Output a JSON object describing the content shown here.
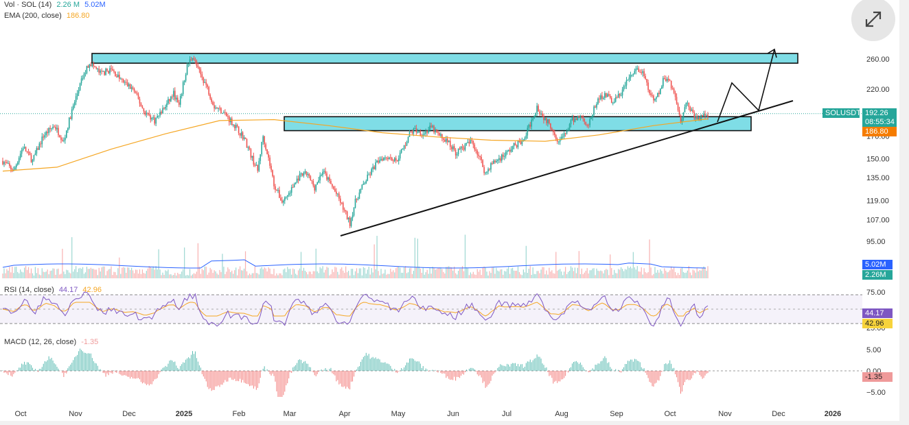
{
  "legends": {
    "vol": {
      "label": "Vol · SOL (14)",
      "v1": "2.26 M",
      "v2": "5.02M"
    },
    "ema": {
      "label": "EMA (200, close)",
      "value": "186.80"
    },
    "rsi": {
      "label": "RSI (14, close)",
      "v1": "44.17",
      "v2": "42.96"
    },
    "macd": {
      "label": "MACD (12, 26, close)",
      "value": "-1.35"
    }
  },
  "tags": {
    "symbol": "SOLUSDT",
    "price": "192.26",
    "countdown": "08:55:34",
    "ema": "186.80",
    "vol_ma": "5.02M",
    "vol": "2.26M",
    "rsi": "44.17",
    "rsi_ma": "42.96",
    "macd": "-1.35"
  },
  "colors": {
    "up": "#26a69a",
    "down": "#ef5350",
    "ema": "#f5a623",
    "zone_fill": "#7fdde6",
    "rsi_line": "#7e57c2",
    "vol_ma": "#2962ff",
    "tag_blue": "#2962ff",
    "tag_teal": "#26a69a",
    "tag_orange": "#f57c00",
    "tag_purple": "#7e57c2",
    "tag_yellow": "#f7d33c",
    "tag_pink": "#ef9a9a"
  },
  "chart_data": {
    "type": "candlestick",
    "symbol": "SOLUSDT",
    "x_ticks": [
      "Oct",
      "Nov",
      "Dec",
      "2025",
      "Feb",
      "Mar",
      "Apr",
      "May",
      "Jun",
      "Jul",
      "Aug",
      "Sep",
      "Oct",
      "Nov",
      "Dec",
      "2026"
    ],
    "price_ticks": [
      95,
      107,
      119,
      135,
      150,
      170,
      220,
      260
    ],
    "price_tick_labels": [
      "95.00",
      "107.00",
      "119.00",
      "135.00",
      "150.00",
      "170.00",
      "220.00",
      "260.00"
    ],
    "price_axis": "log",
    "price_close_series": [
      {
        "t": 0,
        "v": 148
      },
      {
        "t": 8,
        "v": 140
      },
      {
        "t": 15,
        "v": 160
      },
      {
        "t": 22,
        "v": 148
      },
      {
        "t": 30,
        "v": 170
      },
      {
        "t": 38,
        "v": 180
      },
      {
        "t": 45,
        "v": 165
      },
      {
        "t": 52,
        "v": 200
      },
      {
        "t": 58,
        "v": 230
      },
      {
        "t": 64,
        "v": 255
      },
      {
        "t": 72,
        "v": 240
      },
      {
        "t": 80,
        "v": 245
      },
      {
        "t": 88,
        "v": 230
      },
      {
        "t": 96,
        "v": 220
      },
      {
        "t": 104,
        "v": 195
      },
      {
        "t": 112,
        "v": 185
      },
      {
        "t": 120,
        "v": 200
      },
      {
        "t": 126,
        "v": 215
      },
      {
        "t": 130,
        "v": 200
      },
      {
        "t": 136,
        "v": 250
      },
      {
        "t": 140,
        "v": 265
      },
      {
        "t": 144,
        "v": 245
      },
      {
        "t": 150,
        "v": 225
      },
      {
        "t": 156,
        "v": 200
      },
      {
        "t": 162,
        "v": 195
      },
      {
        "t": 168,
        "v": 185
      },
      {
        "t": 174,
        "v": 175
      },
      {
        "t": 178,
        "v": 168
      },
      {
        "t": 184,
        "v": 150
      },
      {
        "t": 188,
        "v": 140
      },
      {
        "t": 192,
        "v": 170
      },
      {
        "t": 196,
        "v": 150
      },
      {
        "t": 200,
        "v": 130
      },
      {
        "t": 206,
        "v": 118
      },
      {
        "t": 212,
        "v": 125
      },
      {
        "t": 218,
        "v": 135
      },
      {
        "t": 224,
        "v": 138
      },
      {
        "t": 230,
        "v": 128
      },
      {
        "t": 236,
        "v": 140
      },
      {
        "t": 242,
        "v": 130
      },
      {
        "t": 248,
        "v": 120
      },
      {
        "t": 252,
        "v": 112
      },
      {
        "t": 256,
        "v": 105
      },
      {
        "t": 260,
        "v": 118
      },
      {
        "t": 266,
        "v": 130
      },
      {
        "t": 272,
        "v": 140
      },
      {
        "t": 278,
        "v": 150
      },
      {
        "t": 284,
        "v": 152
      },
      {
        "t": 290,
        "v": 148
      },
      {
        "t": 296,
        "v": 160
      },
      {
        "t": 300,
        "v": 172
      },
      {
        "t": 304,
        "v": 176
      },
      {
        "t": 310,
        "v": 172
      },
      {
        "t": 316,
        "v": 178
      },
      {
        "t": 322,
        "v": 170
      },
      {
        "t": 328,
        "v": 165
      },
      {
        "t": 334,
        "v": 155
      },
      {
        "t": 340,
        "v": 160
      },
      {
        "t": 346,
        "v": 165
      },
      {
        "t": 352,
        "v": 150
      },
      {
        "t": 356,
        "v": 138
      },
      {
        "t": 360,
        "v": 145
      },
      {
        "t": 366,
        "v": 150
      },
      {
        "t": 372,
        "v": 155
      },
      {
        "t": 378,
        "v": 162
      },
      {
        "t": 384,
        "v": 165
      },
      {
        "t": 390,
        "v": 185
      },
      {
        "t": 394,
        "v": 200
      },
      {
        "t": 398,
        "v": 190
      },
      {
        "t": 404,
        "v": 180
      },
      {
        "t": 410,
        "v": 165
      },
      {
        "t": 414,
        "v": 170
      },
      {
        "t": 420,
        "v": 185
      },
      {
        "t": 426,
        "v": 190
      },
      {
        "t": 432,
        "v": 180
      },
      {
        "t": 438,
        "v": 205
      },
      {
        "t": 444,
        "v": 215
      },
      {
        "t": 450,
        "v": 205
      },
      {
        "t": 456,
        "v": 215
      },
      {
        "t": 462,
        "v": 235
      },
      {
        "t": 468,
        "v": 245
      },
      {
        "t": 472,
        "v": 240
      },
      {
        "t": 476,
        "v": 220
      },
      {
        "t": 480,
        "v": 205
      },
      {
        "t": 484,
        "v": 215
      },
      {
        "t": 488,
        "v": 235
      },
      {
        "t": 492,
        "v": 230
      },
      {
        "t": 496,
        "v": 210
      },
      {
        "t": 500,
        "v": 185
      },
      {
        "t": 504,
        "v": 205
      },
      {
        "t": 508,
        "v": 195
      },
      {
        "t": 512,
        "v": 185
      },
      {
        "t": 516,
        "v": 190
      },
      {
        "t": 520,
        "v": 192.26
      }
    ],
    "ema_200_series": [
      {
        "t": 0,
        "v": 140
      },
      {
        "t": 40,
        "v": 143
      },
      {
        "t": 80,
        "v": 158
      },
      {
        "t": 120,
        "v": 172
      },
      {
        "t": 160,
        "v": 185
      },
      {
        "t": 200,
        "v": 186
      },
      {
        "t": 240,
        "v": 180
      },
      {
        "t": 280,
        "v": 173
      },
      {
        "t": 320,
        "v": 169
      },
      {
        "t": 360,
        "v": 166
      },
      {
        "t": 400,
        "v": 165
      },
      {
        "t": 440,
        "v": 171
      },
      {
        "t": 480,
        "v": 180
      },
      {
        "t": 520,
        "v": 186.8
      }
    ],
    "last_price": 192.26,
    "ema_200_last": 186.8,
    "volume_last": 2.26,
    "volume_ma_last": 5.02,
    "rsi_last": 44.17,
    "rsi_ma_last": 42.96,
    "rsi_ticks": [
      "75.00",
      "25.00"
    ],
    "macd_last": -1.35,
    "macd_ticks": [
      "5.00",
      "0.00",
      "−5.00"
    ],
    "annotations": {
      "resistance_zone": [
        254,
        268
      ],
      "support_zone": [
        175,
        189
      ],
      "trendline": [
        {
          "t": 256,
          "v": 98
        },
        {
          "t": 582,
          "v": 207
        }
      ]
    }
  }
}
